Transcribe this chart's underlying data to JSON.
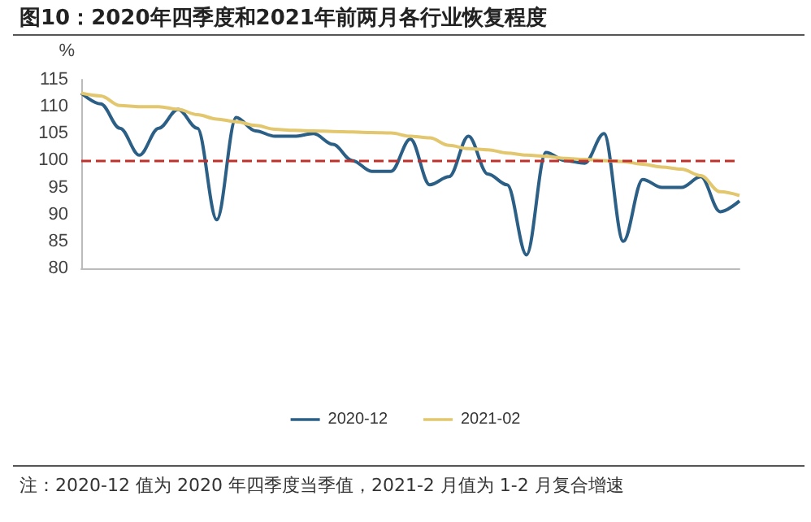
{
  "chart_data": {
    "type": "line",
    "title": "图10：2020年四季度和2021年前两月各行业恢复程度",
    "ylabel": "%",
    "categories": [
      null,
      null,
      null,
      null,
      null,
      null,
      null,
      null,
      null,
      null,
      null,
      null,
      null,
      null,
      null,
      null,
      null,
      null,
      null,
      null,
      null,
      null,
      null,
      null,
      null,
      null,
      null,
      null,
      null,
      null,
      null,
      null,
      null,
      null,
      null
    ],
    "series": [
      {
        "name": "2020-12",
        "color": "#2b5f86",
        "values": [
          112.5,
          110.5,
          106,
          101,
          106,
          109.5,
          106,
          89,
          108,
          105.5,
          104.5,
          104.5,
          105,
          103,
          100,
          98,
          98,
          104,
          95.5,
          97,
          104.5,
          97.5,
          95.5,
          82.5,
          101.5,
          100,
          99.5,
          105,
          85,
          96.5,
          95,
          95,
          97,
          90.5,
          92.5
        ]
      },
      {
        "name": "2021-02",
        "color": "#e2c76e",
        "values": [
          112.5,
          112,
          110.2,
          110,
          110,
          109.5,
          108.5,
          107.7,
          107.2,
          106.5,
          105.8,
          105.6,
          105.5,
          105.4,
          105.3,
          105.2,
          105.1,
          104.5,
          104.2,
          102.8,
          102.2,
          102,
          101.4,
          101,
          100.8,
          100.4,
          100.2,
          100,
          99.8,
          99.3,
          98.8,
          98.4,
          97.2,
          94.2,
          93.5
        ]
      }
    ],
    "ylim": [
      80,
      115
    ],
    "yticks": [
      80,
      85,
      90,
      95,
      100,
      105,
      110,
      115
    ],
    "ref_lines": [
      {
        "axis": "y",
        "value": 100,
        "color": "#c0312b",
        "line_style": "dashed"
      }
    ],
    "grid": false,
    "legend": "bottom",
    "marker": "none",
    "line_style": "solid",
    "annotations": [
      "注：2020-12 值为 2020 年四季度当季值，2021-2 月值为 1-2 月复合增速"
    ]
  }
}
